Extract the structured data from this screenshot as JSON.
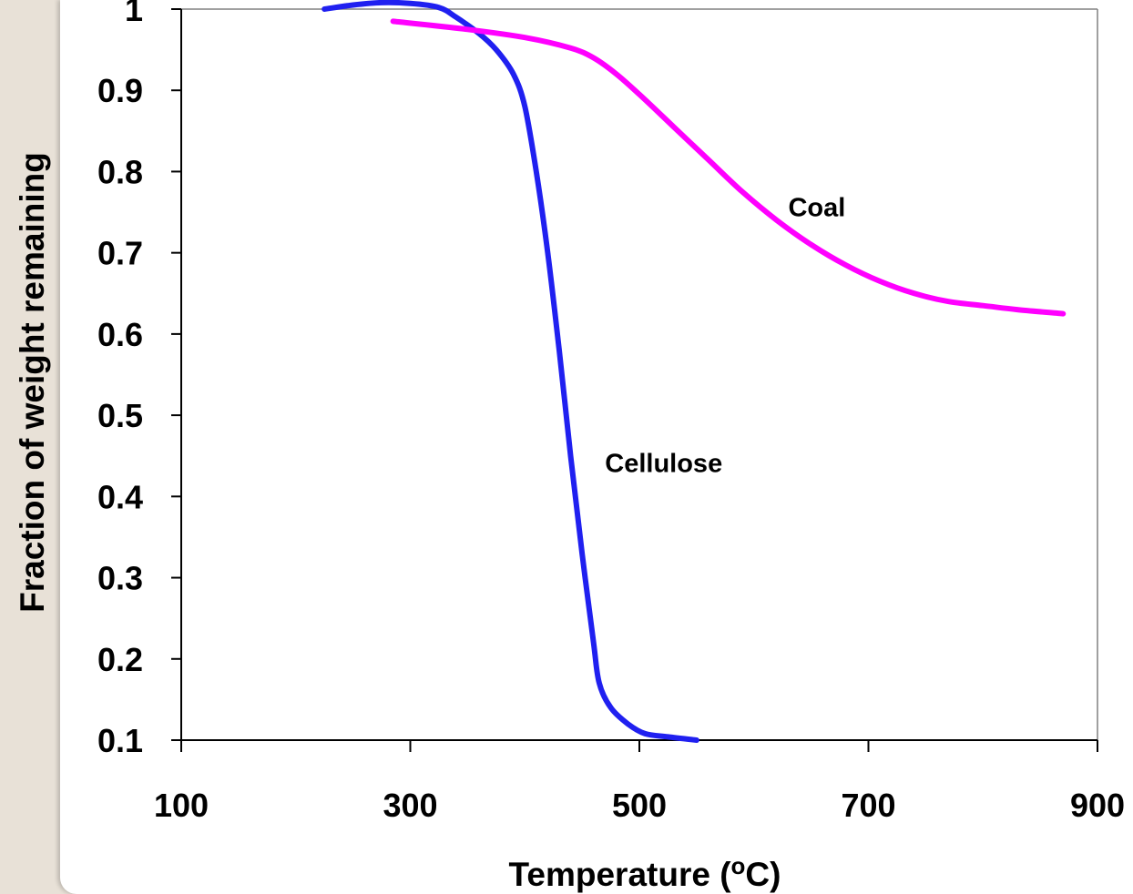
{
  "chart_data": {
    "type": "line",
    "title": "",
    "xlabel_main": "Temperature (",
    "xlabel_sup": "o",
    "xlabel_tail": "C)",
    "ylabel": "Fraction of weight remaining",
    "xlim": [
      100,
      900
    ],
    "ylim": [
      0.1,
      1.0
    ],
    "x_ticks": [
      100,
      300,
      500,
      700,
      900
    ],
    "y_ticks": [
      0.1,
      0.2,
      0.3,
      0.4,
      0.5,
      0.6,
      0.7,
      0.8,
      0.9,
      1
    ],
    "grid": false,
    "legend": "none",
    "series": [
      {
        "name": "Cellulose",
        "color": "#2020f0",
        "label_at": [
          470,
          0.43
        ],
        "points": [
          [
            225,
            1.0
          ],
          [
            250,
            1.005
          ],
          [
            275,
            1.008
          ],
          [
            300,
            1.007
          ],
          [
            325,
            1.002
          ],
          [
            340,
            0.99
          ],
          [
            360,
            0.97
          ],
          [
            375,
            0.95
          ],
          [
            390,
            0.92
          ],
          [
            400,
            0.88
          ],
          [
            410,
            0.8
          ],
          [
            420,
            0.7
          ],
          [
            430,
            0.58
          ],
          [
            440,
            0.45
          ],
          [
            450,
            0.33
          ],
          [
            460,
            0.22
          ],
          [
            465,
            0.17
          ],
          [
            475,
            0.14
          ],
          [
            490,
            0.12
          ],
          [
            505,
            0.108
          ],
          [
            525,
            0.104
          ],
          [
            550,
            0.1
          ]
        ]
      },
      {
        "name": "Coal",
        "color": "#ff00ff",
        "label_at": [
          630,
          0.745
        ],
        "points": [
          [
            285,
            0.985
          ],
          [
            350,
            0.975
          ],
          [
            400,
            0.965
          ],
          [
            440,
            0.952
          ],
          [
            460,
            0.94
          ],
          [
            480,
            0.92
          ],
          [
            500,
            0.895
          ],
          [
            530,
            0.855
          ],
          [
            560,
            0.815
          ],
          [
            590,
            0.775
          ],
          [
            620,
            0.74
          ],
          [
            650,
            0.71
          ],
          [
            680,
            0.685
          ],
          [
            710,
            0.665
          ],
          [
            740,
            0.65
          ],
          [
            770,
            0.64
          ],
          [
            800,
            0.635
          ],
          [
            830,
            0.63
          ],
          [
            870,
            0.625
          ]
        ]
      }
    ]
  }
}
